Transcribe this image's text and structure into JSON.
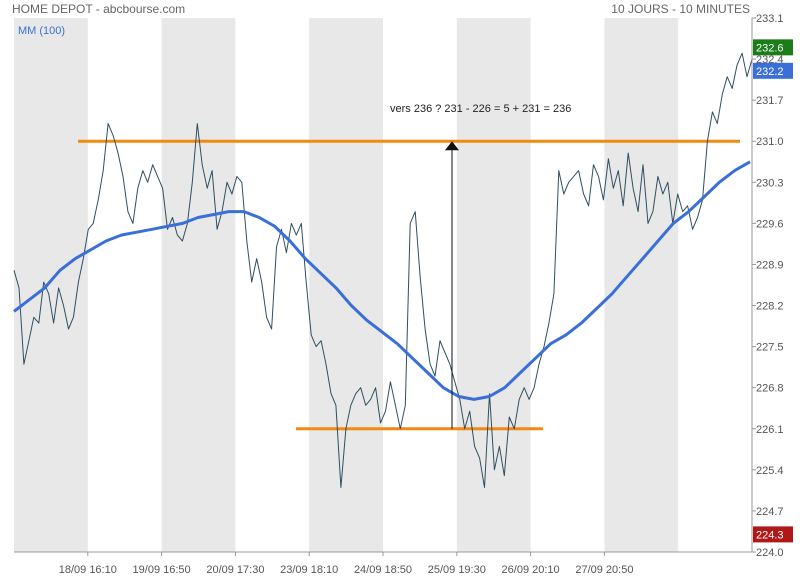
{
  "header": {
    "instrument": "HOME DEPOT - abcbourse.com",
    "period": "10 JOURS - 10 MINUTES"
  },
  "chart_data": {
    "type": "line",
    "y_ticks": [
      "224.0",
      "224.7",
      "225.4",
      "226.1",
      "226.8",
      "227.5",
      "228.2",
      "228.9",
      "229.6",
      "230.3",
      "231.0",
      "231.7",
      "232.4",
      "233.1"
    ],
    "ylim": [
      224.0,
      233.1
    ],
    "x_ticks": [
      "18/09 16:10",
      "19/09 16:50",
      "20/09 17:30",
      "23/09 18:10",
      "24/09 18:50",
      "25/09 19:30",
      "26/09 20:10",
      "27/09 20:50"
    ],
    "grid": false,
    "series": [
      {
        "name": "",
        "color": "#2f4f5f",
        "values": [
          228.8,
          228.5,
          227.2,
          227.6,
          228.0,
          227.9,
          228.6,
          228.4,
          227.9,
          228.5,
          228.2,
          227.8,
          228.0,
          228.6,
          229.0,
          229.5,
          229.6,
          230.0,
          230.5,
          231.3,
          231.1,
          230.8,
          230.4,
          229.8,
          229.6,
          230.2,
          230.5,
          230.3,
          230.6,
          230.4,
          230.2,
          229.5,
          229.7,
          229.4,
          229.3,
          229.6,
          230.3,
          231.3,
          230.6,
          230.2,
          230.5,
          229.5,
          229.8,
          230.3,
          230.1,
          230.4,
          230.3,
          229.3,
          228.6,
          229.0,
          228.6,
          228.0,
          227.8,
          229.2,
          229.5,
          229.1,
          229.6,
          229.4,
          229.6,
          228.6,
          227.7,
          227.5,
          227.6,
          227.2,
          226.7,
          226.5,
          225.1,
          226.1,
          226.5,
          226.7,
          226.8,
          226.5,
          226.6,
          226.8,
          226.2,
          226.4,
          226.9,
          226.5,
          226.1,
          226.5,
          229.6,
          229.8,
          228.7,
          227.8,
          227.2,
          227.0,
          227.6,
          227.4,
          227.2,
          226.9,
          226.6,
          226.1,
          226.4,
          225.8,
          225.6,
          225.1,
          226.7,
          225.4,
          225.8,
          225.3,
          226.3,
          226.1,
          226.6,
          226.8,
          226.6,
          226.8,
          227.2,
          227.5,
          227.9,
          228.4,
          230.5,
          230.1,
          230.3,
          230.4,
          230.5,
          230.1,
          229.9,
          230.6,
          230.4,
          230.0,
          230.7,
          230.2,
          230.5,
          229.9,
          230.8,
          230.2,
          229.8,
          230.6,
          229.6,
          229.8,
          230.4,
          230.1,
          230.3,
          229.6,
          230.1,
          229.8,
          229.9,
          229.5,
          229.7,
          230.0,
          231.0,
          231.5,
          231.3,
          231.8,
          232.1,
          231.9,
          232.3,
          232.5,
          232.1,
          232.4
        ]
      },
      {
        "name": "MM (100)",
        "color": "#3a6fd8",
        "values": [
          228.1,
          228.3,
          228.5,
          228.8,
          229.0,
          229.15,
          229.3,
          229.4,
          229.45,
          229.5,
          229.55,
          229.6,
          229.7,
          229.75,
          229.8,
          229.8,
          229.7,
          229.55,
          229.3,
          229.0,
          228.75,
          228.5,
          228.2,
          227.95,
          227.75,
          227.55,
          227.3,
          227.05,
          226.8,
          226.65,
          226.6,
          226.65,
          226.8,
          227.05,
          227.3,
          227.55,
          227.7,
          227.9,
          228.15,
          228.4,
          228.7,
          229.0,
          229.3,
          229.6,
          229.8,
          230.05,
          230.3,
          230.5,
          230.65
        ]
      }
    ],
    "mm_label": "MM (100)",
    "annotation": "vers 236 ? 231 - 226 = 5 + 231 = 236",
    "levels": {
      "resistance": 231.0,
      "support": 226.1,
      "color": "#f08a10"
    },
    "badges": [
      {
        "label": "232.6",
        "color": "#1a7d1a"
      },
      {
        "label": "232.2",
        "color": "#3a6fd8"
      },
      {
        "label": "224.3",
        "color": "#b01818"
      }
    ],
    "shade_color": "#e8e8e8"
  }
}
